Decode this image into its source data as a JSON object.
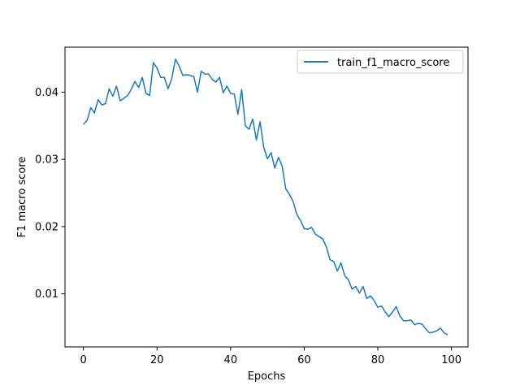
{
  "chart_data": {
    "type": "line",
    "title": "",
    "xlabel": "Epochs",
    "ylabel": "F1 macro score",
    "xlim": [
      -5,
      104.5
    ],
    "ylim": [
      0.0021,
      0.0467
    ],
    "xticks": [
      0,
      20,
      40,
      60,
      80,
      100
    ],
    "xtick_labels": [
      "0",
      "20",
      "40",
      "60",
      "80",
      "100"
    ],
    "yticks": [
      0.01,
      0.02,
      0.03,
      0.04
    ],
    "ytick_labels": [
      "0.01",
      "0.02",
      "0.03",
      "0.04"
    ],
    "grid": false,
    "legend": {
      "placement": "top-right"
    },
    "series": [
      {
        "name": "train_f1_macro_score",
        "color": "#1f77b4",
        "x": [
          0,
          1,
          2,
          3,
          4,
          5,
          6,
          7,
          8,
          9,
          10,
          11,
          12,
          13,
          14,
          15,
          16,
          17,
          18,
          19,
          20,
          21,
          22,
          23,
          24,
          25,
          26,
          27,
          28,
          29,
          30,
          31,
          32,
          33,
          34,
          35,
          36,
          37,
          38,
          39,
          40,
          41,
          42,
          43,
          44,
          45,
          46,
          47,
          48,
          49,
          50,
          51,
          52,
          53,
          54,
          55,
          56,
          57,
          58,
          59,
          60,
          61,
          62,
          63,
          64,
          65,
          66,
          67,
          68,
          69,
          70,
          71,
          72,
          73,
          74,
          75,
          76,
          77,
          78,
          79,
          80,
          81,
          82,
          83,
          84,
          85,
          86,
          87,
          88,
          89,
          90,
          91,
          92,
          93,
          94,
          95,
          96,
          97,
          98,
          99
        ],
        "values": [
          0.0352,
          0.0358,
          0.0377,
          0.0369,
          0.0389,
          0.0381,
          0.0383,
          0.0405,
          0.0394,
          0.0409,
          0.0387,
          0.0391,
          0.0395,
          0.0404,
          0.0416,
          0.0407,
          0.0422,
          0.0398,
          0.0395,
          0.0444,
          0.0436,
          0.0422,
          0.0422,
          0.0405,
          0.042,
          0.0449,
          0.0439,
          0.0425,
          0.0426,
          0.0425,
          0.0423,
          0.04,
          0.0431,
          0.0427,
          0.0427,
          0.0419,
          0.0415,
          0.0422,
          0.0399,
          0.0409,
          0.0398,
          0.0397,
          0.0367,
          0.0404,
          0.035,
          0.0345,
          0.036,
          0.0329,
          0.0356,
          0.0318,
          0.0301,
          0.031,
          0.0287,
          0.0303,
          0.029,
          0.0256,
          0.0248,
          0.0237,
          0.0218,
          0.0209,
          0.0197,
          0.0196,
          0.0199,
          0.0189,
          0.0185,
          0.0182,
          0.017,
          0.0151,
          0.0148,
          0.0134,
          0.0146,
          0.0127,
          0.0121,
          0.0107,
          0.0111,
          0.0101,
          0.0111,
          0.0093,
          0.0097,
          0.009,
          0.008,
          0.0082,
          0.0073,
          0.0066,
          0.0073,
          0.0081,
          0.0067,
          0.006,
          0.006,
          0.0061,
          0.0054,
          0.0056,
          0.0055,
          0.0048,
          0.0042,
          0.0043,
          0.0045,
          0.0049,
          0.0042,
          0.0039
        ]
      }
    ]
  }
}
